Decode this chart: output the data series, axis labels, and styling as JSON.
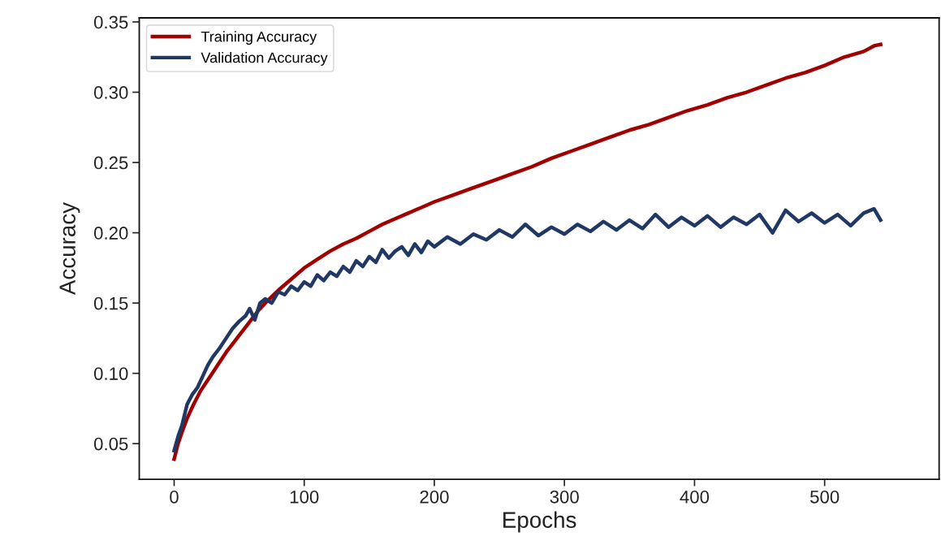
{
  "chart_data": {
    "type": "line",
    "xlabel": "Epochs",
    "ylabel": "Accuracy",
    "xlim": [
      -26.8,
      588
    ],
    "xticks": [
      0,
      100,
      200,
      300,
      400,
      500
    ],
    "ylim": [
      0.0246,
      0.3529
    ],
    "yticks": [
      {
        "value": 0.05,
        "label": "0.05"
      },
      {
        "value": 0.1,
        "label": "0.10"
      },
      {
        "value": 0.15,
        "label": "0.15"
      },
      {
        "value": 0.2,
        "label": "0.20"
      },
      {
        "value": 0.25,
        "label": "0.25"
      },
      {
        "value": 0.3,
        "label": "0.30"
      },
      {
        "value": 0.35,
        "label": "0.35"
      }
    ],
    "grid": false,
    "legend": "top left",
    "marker": "none",
    "line_style": "solid",
    "series": [
      {
        "name": "Training Accuracy",
        "color": "#a00000",
        "x": [
          0,
          3,
          6,
          10,
          15,
          20,
          25,
          30,
          35,
          40,
          45,
          50,
          55,
          60,
          65,
          70,
          80,
          90,
          100,
          110,
          120,
          130,
          140,
          150,
          160,
          170,
          180,
          190,
          200,
          215,
          230,
          245,
          260,
          275,
          290,
          305,
          320,
          335,
          350,
          365,
          380,
          395,
          410,
          425,
          440,
          455,
          470,
          485,
          500,
          515,
          530,
          538,
          543
        ],
        "values": [
          0.039,
          0.05,
          0.058,
          0.068,
          0.078,
          0.087,
          0.094,
          0.101,
          0.108,
          0.115,
          0.121,
          0.127,
          0.133,
          0.139,
          0.145,
          0.15,
          0.159,
          0.167,
          0.175,
          0.181,
          0.187,
          0.192,
          0.196,
          0.201,
          0.206,
          0.21,
          0.214,
          0.218,
          0.222,
          0.227,
          0.232,
          0.237,
          0.242,
          0.247,
          0.253,
          0.258,
          0.263,
          0.268,
          0.273,
          0.277,
          0.282,
          0.287,
          0.291,
          0.296,
          0.3,
          0.305,
          0.31,
          0.314,
          0.319,
          0.325,
          0.329,
          0.333,
          0.334
        ]
      },
      {
        "name": "Validation Accuracy",
        "color": "#203864",
        "x": [
          0,
          3,
          6,
          10,
          14,
          18,
          22,
          26,
          30,
          35,
          40,
          45,
          50,
          55,
          58,
          62,
          66,
          70,
          75,
          80,
          85,
          90,
          95,
          100,
          105,
          110,
          115,
          120,
          125,
          130,
          135,
          140,
          145,
          150,
          155,
          160,
          165,
          170,
          175,
          180,
          185,
          190,
          195,
          200,
          210,
          220,
          230,
          240,
          250,
          260,
          270,
          280,
          290,
          300,
          310,
          320,
          330,
          340,
          350,
          360,
          370,
          380,
          390,
          400,
          410,
          420,
          430,
          440,
          450,
          460,
          470,
          480,
          490,
          500,
          510,
          520,
          530,
          538,
          543
        ],
        "values": [
          0.045,
          0.055,
          0.063,
          0.078,
          0.085,
          0.09,
          0.098,
          0.106,
          0.112,
          0.118,
          0.125,
          0.132,
          0.137,
          0.141,
          0.146,
          0.138,
          0.15,
          0.153,
          0.15,
          0.158,
          0.156,
          0.162,
          0.159,
          0.165,
          0.162,
          0.17,
          0.166,
          0.172,
          0.169,
          0.176,
          0.172,
          0.18,
          0.176,
          0.183,
          0.179,
          0.188,
          0.182,
          0.187,
          0.19,
          0.184,
          0.192,
          0.186,
          0.194,
          0.19,
          0.197,
          0.192,
          0.199,
          0.195,
          0.202,
          0.197,
          0.206,
          0.198,
          0.204,
          0.199,
          0.206,
          0.201,
          0.208,
          0.202,
          0.209,
          0.203,
          0.213,
          0.204,
          0.211,
          0.205,
          0.212,
          0.204,
          0.211,
          0.206,
          0.213,
          0.2,
          0.216,
          0.208,
          0.214,
          0.207,
          0.213,
          0.205,
          0.214,
          0.217,
          0.209
        ]
      }
    ]
  }
}
